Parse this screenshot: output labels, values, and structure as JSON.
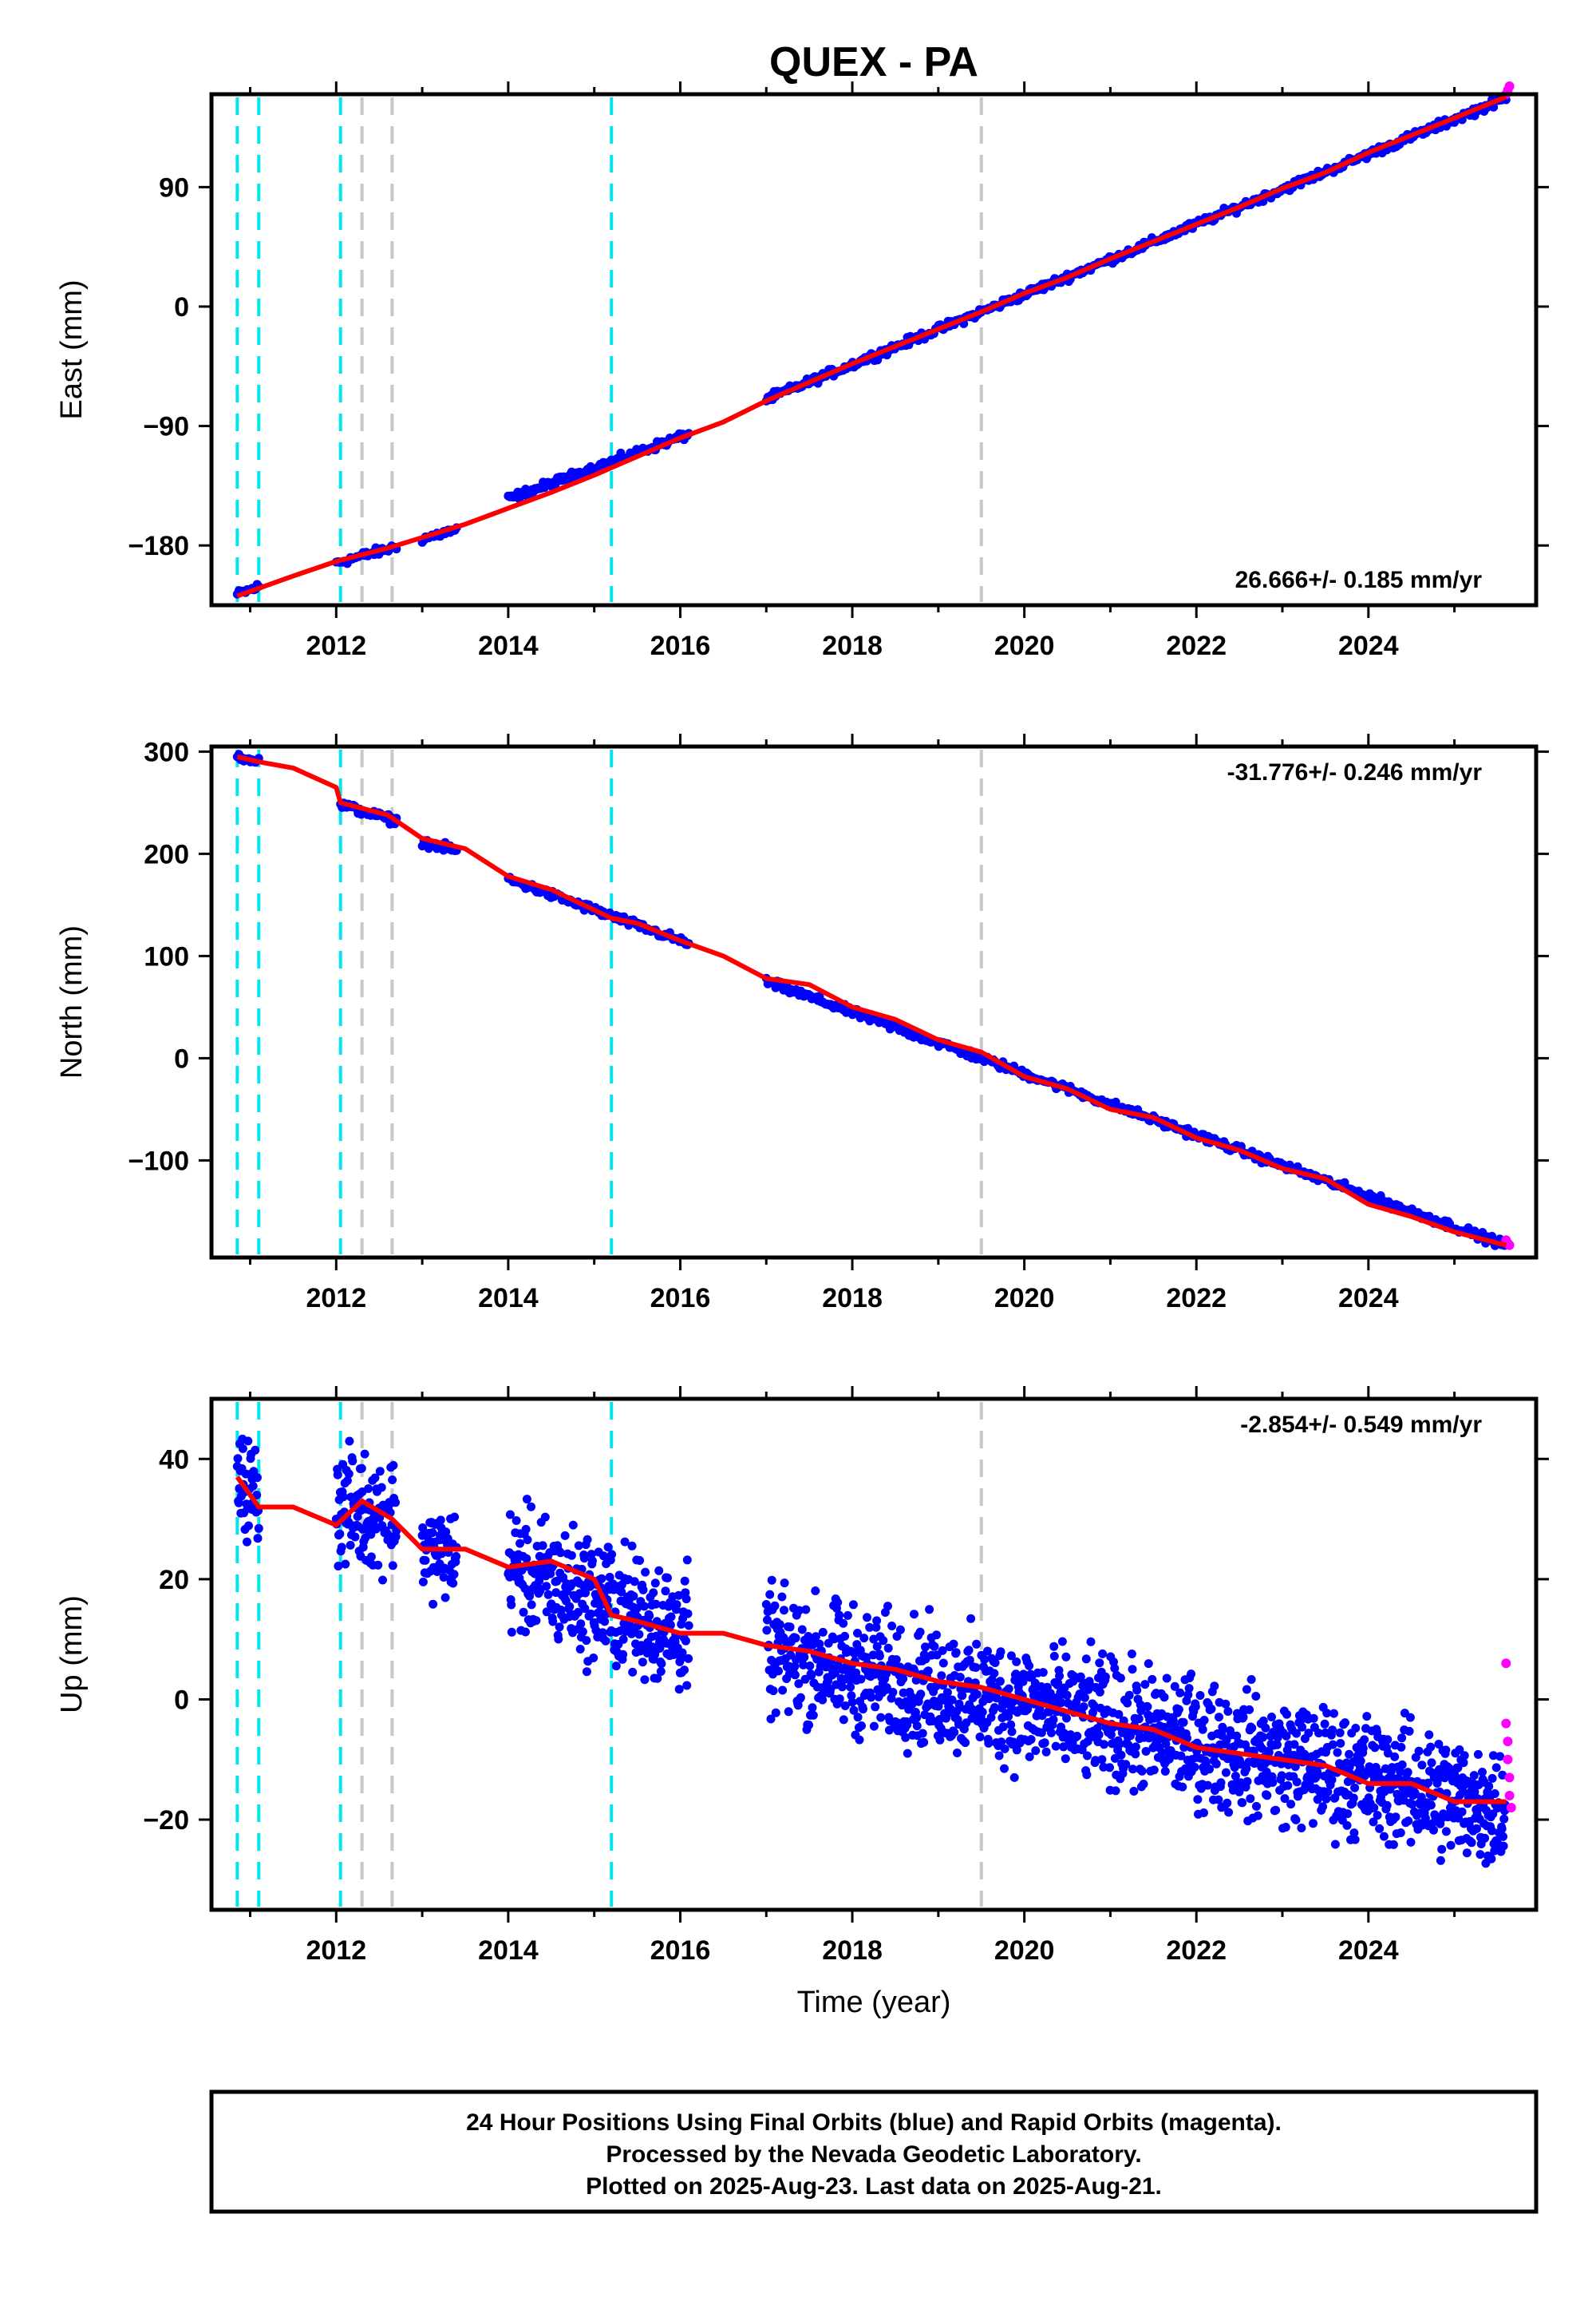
{
  "title": "QUEX - PA",
  "colors": {
    "final": "#0000ff",
    "rapid": "#ff00ff",
    "model": "#ff0000",
    "cyan_line": "#00e5ee",
    "gray_line": "#c8c8c8"
  },
  "chart_data": [
    {
      "type": "scatter",
      "ylabel": "East (mm)",
      "xlabel": "",
      "xlim": [
        2010.55,
        2025.95
      ],
      "ylim": [
        -225,
        160
      ],
      "xticks": [
        2012,
        2014,
        2016,
        2018,
        2020,
        2022,
        2024
      ],
      "xtick_labels": [
        "2012",
        "2014",
        "2016",
        "2018",
        "2020",
        "2022",
        "2024"
      ],
      "yticks": [
        -180,
        -90,
        0,
        90
      ],
      "ytick_labels": [
        "−180",
        "−90",
        "0",
        "90"
      ],
      "rate_label": "26.666+/- 0.185 mm/yr",
      "rate_position": "bottom-right",
      "model_line": {
        "x": [
          2010.85,
          2011.5,
          2012.0,
          2012.6,
          2013.0,
          2013.5,
          2014.0,
          2014.5,
          2015.0,
          2015.5,
          2016.0,
          2016.5,
          2017.0,
          2017.5,
          2018.0,
          2018.5,
          2019.0,
          2019.5,
          2020.0,
          2020.5,
          2021.0,
          2021.5,
          2022.0,
          2022.5,
          2023.0,
          2023.5,
          2024.0,
          2024.5,
          2025.0,
          2025.6
        ],
        "y": [
          -218,
          -203,
          -192,
          -182,
          -174,
          -164,
          -152,
          -140,
          -127,
          -113,
          -99,
          -87,
          -71,
          -57,
          -43,
          -30,
          -17,
          -4,
          10,
          22,
          36,
          49,
          62,
          75,
          89,
          101,
          116,
          129,
          142,
          158
        ]
      },
      "final_segments": [
        {
          "x": [
            2010.85,
            2011.1
          ],
          "y": [
            -217,
            -211
          ]
        },
        {
          "x": [
            2012.0,
            2012.7
          ],
          "y": [
            -193,
            -181
          ]
        },
        {
          "x": [
            2013.0,
            2013.4
          ],
          "y": [
            -175,
            -168
          ]
        },
        {
          "x": [
            2014.0,
            2016.1
          ],
          "y": [
            -145,
            -96
          ]
        },
        {
          "x": [
            2017.0,
            2025.6
          ],
          "y": [
            -70,
            157
          ]
        }
      ],
      "rapid_points": {
        "x": [
          2025.6,
          2025.62,
          2025.64
        ],
        "y": [
          160,
          163,
          166
        ]
      },
      "event_lines": [
        {
          "x": 2010.85,
          "kind": "cyan"
        },
        {
          "x": 2011.1,
          "kind": "cyan"
        },
        {
          "x": 2012.05,
          "kind": "cyan"
        },
        {
          "x": 2012.3,
          "kind": "gray"
        },
        {
          "x": 2012.65,
          "kind": "gray"
        },
        {
          "x": 2015.2,
          "kind": "cyan"
        },
        {
          "x": 2019.5,
          "kind": "gray"
        }
      ]
    },
    {
      "type": "scatter",
      "ylabel": "North (mm)",
      "xlabel": "",
      "xlim": [
        2010.55,
        2025.95
      ],
      "ylim": [
        -195,
        305
      ],
      "xticks": [
        2012,
        2014,
        2016,
        2018,
        2020,
        2022,
        2024
      ],
      "xtick_labels": [
        "2012",
        "2014",
        "2016",
        "2018",
        "2020",
        "2022",
        "2024"
      ],
      "yticks": [
        -100,
        0,
        100,
        200,
        300
      ],
      "ytick_labels": [
        "−100",
        "0",
        "100",
        "200",
        "300"
      ],
      "rate_label": "-31.776+/- 0.246 mm/yr",
      "rate_position": "top-right",
      "model_line": {
        "x": [
          2010.85,
          2011.1,
          2011.5,
          2012.0,
          2012.05,
          2012.6,
          2013.0,
          2013.5,
          2014.0,
          2014.5,
          2015.0,
          2015.2,
          2015.5,
          2016.0,
          2016.5,
          2017.0,
          2017.5,
          2018.0,
          2018.5,
          2019.0,
          2019.5,
          2020.0,
          2020.5,
          2021.0,
          2021.5,
          2022.0,
          2022.5,
          2023.0,
          2023.5,
          2024.0,
          2024.5,
          2025.0,
          2025.6
        ],
        "y": [
          295,
          290,
          284,
          265,
          250,
          238,
          215,
          205,
          178,
          165,
          145,
          137,
          132,
          115,
          100,
          78,
          72,
          50,
          38,
          18,
          6,
          -18,
          -30,
          -50,
          -58,
          -78,
          -90,
          -108,
          -118,
          -143,
          -155,
          -170,
          -183
        ]
      },
      "final_segments": [
        {
          "x": [
            2010.85,
            2011.1
          ],
          "y": [
            296,
            291
          ]
        },
        {
          "x": [
            2012.05,
            2012.7
          ],
          "y": [
            248,
            232
          ]
        },
        {
          "x": [
            2013.0,
            2013.4
          ],
          "y": [
            212,
            203
          ]
        },
        {
          "x": [
            2014.0,
            2016.1
          ],
          "y": [
            175,
            112
          ]
        },
        {
          "x": [
            2017.0,
            2025.6
          ],
          "y": [
            75,
            -183
          ]
        }
      ],
      "rapid_points": {
        "x": [
          2025.6,
          2025.62,
          2025.64
        ],
        "y": [
          -178,
          -181,
          -183
        ]
      },
      "event_lines": [
        {
          "x": 2010.85,
          "kind": "cyan"
        },
        {
          "x": 2011.1,
          "kind": "cyan"
        },
        {
          "x": 2012.05,
          "kind": "cyan"
        },
        {
          "x": 2012.3,
          "kind": "gray"
        },
        {
          "x": 2012.65,
          "kind": "gray"
        },
        {
          "x": 2015.2,
          "kind": "cyan"
        },
        {
          "x": 2019.5,
          "kind": "gray"
        }
      ]
    },
    {
      "type": "scatter",
      "ylabel": "Up (mm)",
      "xlabel": "Time (year)",
      "xlim": [
        2010.55,
        2025.95
      ],
      "ylim": [
        -35,
        50
      ],
      "xticks": [
        2012,
        2014,
        2016,
        2018,
        2020,
        2022,
        2024
      ],
      "xtick_labels": [
        "2012",
        "2014",
        "2016",
        "2018",
        "2020",
        "2022",
        "2024"
      ],
      "yticks": [
        -20,
        0,
        20,
        40
      ],
      "ytick_labels": [
        "−20",
        "0",
        "20",
        "40"
      ],
      "rate_label": "-2.854+/- 0.549 mm/yr",
      "rate_position": "top-right",
      "model_line": {
        "x": [
          2010.85,
          2011.1,
          2011.5,
          2012.0,
          2012.3,
          2012.65,
          2013.0,
          2013.5,
          2014.0,
          2014.5,
          2015.0,
          2015.2,
          2015.5,
          2016.0,
          2016.5,
          2017.0,
          2017.5,
          2018.0,
          2018.5,
          2019.0,
          2019.5,
          2020.0,
          2020.5,
          2021.0,
          2021.5,
          2022.0,
          2022.5,
          2023.0,
          2023.5,
          2024.0,
          2024.5,
          2025.0,
          2025.6
        ],
        "y": [
          37,
          32,
          32,
          29,
          33,
          30,
          25,
          25,
          22,
          23,
          20,
          14,
          13,
          11,
          11,
          9,
          8,
          6,
          5,
          3,
          2,
          0,
          -2,
          -4,
          -5,
          -8,
          -9,
          -10,
          -11,
          -14,
          -14,
          -17,
          -17
        ]
      },
      "final_segments": [
        {
          "x": [
            2010.85,
            2011.1
          ],
          "y": [
            36,
            34
          ],
          "spread": 8
        },
        {
          "x": [
            2012.0,
            2012.7
          ],
          "y": [
            32,
            31
          ],
          "spread": 9
        },
        {
          "x": [
            2013.0,
            2013.4
          ],
          "y": [
            25,
            24
          ],
          "spread": 7
        },
        {
          "x": [
            2014.0,
            2016.1
          ],
          "y": [
            22,
            11
          ],
          "spread": 10
        },
        {
          "x": [
            2017.0,
            2025.6
          ],
          "y": [
            8,
            -18
          ],
          "spread": 10
        }
      ],
      "rapid_points": {
        "x": [
          2025.6,
          2025.6,
          2025.62,
          2025.62,
          2025.64,
          2025.64,
          2025.66
        ],
        "y": [
          6,
          -4,
          -7,
          -10,
          -13,
          -16,
          -18
        ]
      },
      "event_lines": [
        {
          "x": 2010.85,
          "kind": "cyan"
        },
        {
          "x": 2011.1,
          "kind": "cyan"
        },
        {
          "x": 2012.05,
          "kind": "cyan"
        },
        {
          "x": 2012.3,
          "kind": "gray"
        },
        {
          "x": 2012.65,
          "kind": "gray"
        },
        {
          "x": 2015.2,
          "kind": "cyan"
        },
        {
          "x": 2019.5,
          "kind": "gray"
        }
      ]
    }
  ],
  "footer": {
    "line1": "24 Hour Positions Using Final Orbits (blue) and Rapid Orbits (magenta).",
    "line2": "Processed by the Nevada Geodetic Laboratory.",
    "line3": "Plotted on 2025-Aug-23. Last data on 2025-Aug-21."
  }
}
